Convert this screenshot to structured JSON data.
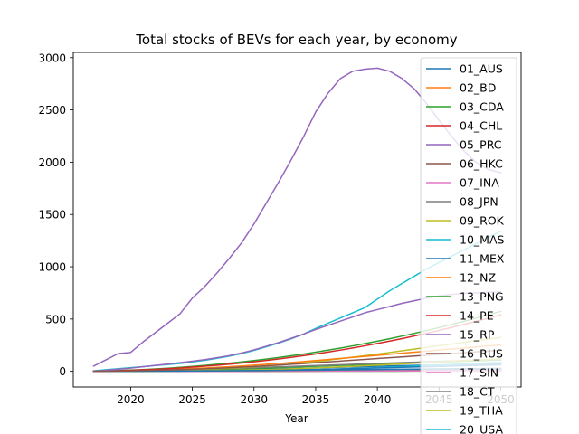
{
  "chart_data": {
    "type": "line",
    "title": "Total stocks of BEVs for each year, by economy",
    "xlabel": "Year",
    "ylabel": "",
    "xlim": [
      2015.35,
      2051.65
    ],
    "ylim": [
      -150,
      3050
    ],
    "xticks": [
      2020,
      2025,
      2030,
      2035,
      2040,
      2045,
      2050
    ],
    "yticks": [
      0,
      500,
      1000,
      1500,
      2000,
      2500,
      3000
    ],
    "grid": false,
    "legend_position": "top-right",
    "colors": [
      "#1f77b4",
      "#ff7f0e",
      "#2ca02c",
      "#d62728",
      "#9467bd",
      "#8c564b",
      "#e377c2",
      "#7f7f7f",
      "#bcbd22",
      "#17becf"
    ],
    "x": [
      2017,
      2018,
      2019,
      2020,
      2021,
      2022,
      2023,
      2024,
      2025,
      2026,
      2027,
      2028,
      2029,
      2030,
      2031,
      2032,
      2033,
      2034,
      2035,
      2036,
      2037,
      2038,
      2039,
      2040,
      2041,
      2042,
      2043,
      2044,
      2045,
      2046,
      2047,
      2048,
      2049,
      2050
    ],
    "series": [
      {
        "name": "01_AUS",
        "values": [
          0,
          0,
          1,
          1,
          2,
          3,
          4,
          5,
          7,
          9,
          11,
          13,
          15,
          18,
          21,
          24,
          27,
          30,
          33,
          36,
          39,
          42,
          45,
          48,
          51,
          54,
          57,
          59,
          61,
          63,
          65,
          67,
          69,
          70
        ]
      },
      {
        "name": "02_BD",
        "values": [
          0,
          0,
          0,
          0,
          0,
          0,
          0,
          0,
          0,
          1,
          1,
          1,
          1,
          1,
          2,
          2,
          2,
          2,
          3,
          3,
          3,
          3,
          4,
          4,
          4,
          4,
          5,
          5,
          5,
          5,
          6,
          6,
          6,
          6
        ]
      },
      {
        "name": "03_CDA",
        "values": [
          0,
          1,
          2,
          3,
          4,
          6,
          8,
          10,
          12,
          15,
          18,
          21,
          24,
          28,
          32,
          36,
          40,
          44,
          48,
          52,
          56,
          60,
          64,
          68,
          72,
          76,
          80,
          84,
          88,
          92,
          96,
          100,
          104,
          108
        ]
      },
      {
        "name": "04_CHL",
        "values": [
          0,
          0,
          0,
          0,
          0,
          0,
          1,
          1,
          1,
          1,
          2,
          2,
          2,
          3,
          3,
          3,
          4,
          4,
          5,
          5,
          6,
          6,
          7,
          7,
          8,
          8,
          9,
          9,
          10,
          10,
          11,
          11,
          12,
          12
        ]
      },
      {
        "name": "05_PRC",
        "values": [
          50,
          110,
          170,
          180,
          280,
          370,
          460,
          550,
          700,
          810,
          940,
          1080,
          1230,
          1410,
          1610,
          1810,
          2020,
          2240,
          2480,
          2660,
          2800,
          2870,
          2890,
          2900,
          2870,
          2800,
          2700,
          2560,
          2400,
          2250,
          2110,
          2000,
          1930,
          1900
        ]
      },
      {
        "name": "06_HKC",
        "values": [
          0,
          1,
          1,
          2,
          2,
          3,
          3,
          4,
          4,
          5,
          5,
          6,
          6,
          7,
          7,
          8,
          8,
          9,
          9,
          10,
          10,
          11,
          11,
          12,
          12,
          13,
          13,
          14,
          14,
          15,
          15,
          16,
          16,
          17
        ]
      },
      {
        "name": "07_INA",
        "values": [
          0,
          0,
          0,
          0,
          0,
          0,
          0,
          0,
          1,
          1,
          1,
          2,
          2,
          3,
          3,
          4,
          4,
          5,
          6,
          6,
          7,
          8,
          9,
          10,
          11,
          12,
          13,
          14,
          15,
          16,
          17,
          18,
          19,
          20
        ]
      },
      {
        "name": "08_JPN",
        "values": [
          2,
          3,
          4,
          5,
          7,
          9,
          11,
          14,
          17,
          20,
          23,
          27,
          31,
          35,
          39,
          43,
          47,
          51,
          55,
          59,
          63,
          67,
          71,
          75,
          79,
          83,
          87,
          91,
          95,
          99,
          103,
          107,
          111,
          115
        ]
      },
      {
        "name": "09_ROK",
        "values": [
          0,
          1,
          2,
          3,
          5,
          7,
          10,
          13,
          16,
          20,
          25,
          30,
          36,
          43,
          51,
          60,
          70,
          81,
          93,
          106,
          120,
          135,
          150,
          165,
          180,
          196,
          212,
          228,
          244,
          260,
          276,
          292,
          308,
          324
        ]
      },
      {
        "name": "10_MAS",
        "values": [
          0,
          0,
          0,
          0,
          0,
          1,
          1,
          1,
          2,
          2,
          3,
          4,
          5,
          6,
          8,
          10,
          12,
          14,
          17,
          20,
          23,
          27,
          31,
          35,
          40,
          45,
          50,
          55,
          60,
          65,
          70,
          75,
          80,
          85
        ]
      },
      {
        "name": "11_MEX",
        "values": [
          0,
          0,
          0,
          1,
          1,
          1,
          2,
          2,
          3,
          4,
          5,
          6,
          7,
          8,
          10,
          12,
          14,
          16,
          18,
          20,
          23,
          26,
          29,
          32,
          35,
          38,
          41,
          44,
          47,
          50,
          53,
          56,
          59,
          62
        ]
      },
      {
        "name": "12_NZ",
        "values": [
          0,
          0,
          1,
          1,
          1,
          2,
          2,
          3,
          3,
          4,
          4,
          5,
          5,
          6,
          7,
          8,
          9,
          10,
          11,
          12,
          13,
          14,
          15,
          16,
          17,
          18,
          19,
          20,
          21,
          22,
          23,
          24,
          25,
          26
        ]
      },
      {
        "name": "13_PNG",
        "values": [
          0,
          0,
          0,
          0,
          0,
          0,
          0,
          0,
          0,
          0,
          0,
          0,
          0,
          0,
          0,
          0,
          0,
          1,
          1,
          1,
          1,
          1,
          1,
          1,
          1,
          1,
          2,
          2,
          2,
          2,
          2,
          2,
          2,
          2
        ]
      },
      {
        "name": "14_PE",
        "values": [
          0,
          0,
          0,
          0,
          0,
          0,
          0,
          0,
          0,
          0,
          1,
          1,
          1,
          1,
          1,
          2,
          2,
          2,
          2,
          3,
          3,
          3,
          3,
          4,
          4,
          4,
          4,
          5,
          5,
          5,
          5,
          6,
          6,
          6
        ]
      },
      {
        "name": "15_RP",
        "values": [
          0,
          0,
          0,
          0,
          0,
          0,
          0,
          1,
          1,
          1,
          1,
          2,
          2,
          2,
          3,
          3,
          4,
          4,
          5,
          5,
          6,
          6,
          7,
          7,
          8,
          8,
          9,
          9,
          10,
          10,
          11,
          11,
          12,
          12
        ]
      },
      {
        "name": "16_RUS",
        "values": [
          0,
          0,
          0,
          0,
          0,
          1,
          1,
          1,
          2,
          2,
          3,
          3,
          4,
          5,
          6,
          7,
          8,
          9,
          10,
          11,
          12,
          13,
          14,
          15,
          16,
          17,
          18,
          19,
          20,
          21,
          22,
          23,
          24,
          25
        ]
      },
      {
        "name": "17_SIN",
        "values": [
          0,
          0,
          0,
          0,
          0,
          0,
          0,
          0,
          0,
          0,
          0,
          0,
          0,
          1,
          1,
          1,
          1,
          1,
          2,
          2,
          2,
          2,
          2,
          3,
          3,
          3,
          3,
          3,
          4,
          4,
          4,
          4,
          4,
          5
        ]
      },
      {
        "name": "18_CT",
        "values": [
          0,
          0,
          0,
          1,
          1,
          1,
          2,
          2,
          3,
          3,
          4,
          4,
          5,
          5,
          6,
          7,
          8,
          9,
          10,
          11,
          12,
          13,
          14,
          15,
          16,
          17,
          18,
          19,
          20,
          21,
          22,
          23,
          24,
          25
        ]
      },
      {
        "name": "19_THA",
        "values": [
          0,
          0,
          0,
          0,
          1,
          1,
          2,
          3,
          4,
          5,
          7,
          9,
          11,
          14,
          17,
          20,
          24,
          28,
          32,
          37,
          42,
          47,
          53,
          59,
          65,
          71,
          77,
          83,
          89,
          95,
          101,
          107,
          113,
          119
        ]
      },
      {
        "name": "20_USA",
        "values": [
          5,
          15,
          25,
          35,
          45,
          55,
          65,
          75,
          90,
          105,
          125,
          145,
          170,
          200,
          235,
          270,
          310,
          355,
          410,
          460,
          510,
          560,
          610,
          690,
          770,
          840,
          910,
          980,
          1040,
          1100,
          1160,
          1220,
          1280,
          1340
        ]
      },
      {
        "name": "",
        "values": [
          0,
          0,
          0,
          0,
          0,
          1,
          1,
          2,
          3,
          4,
          5,
          6,
          7,
          8,
          9,
          10,
          11,
          12,
          13,
          14,
          15,
          16,
          17,
          18,
          19,
          20,
          21,
          22,
          23,
          24,
          25,
          26,
          27,
          28
        ]
      },
      {
        "name": "",
        "values": [
          0,
          2,
          4,
          7,
          10,
          14,
          18,
          22,
          27,
          32,
          38,
          44,
          51,
          59,
          67,
          75,
          84,
          93,
          103,
          113,
          123,
          133,
          143,
          153,
          163,
          173,
          183,
          193,
          203,
          213,
          223,
          233,
          243,
          253
        ]
      },
      {
        "name": "",
        "values": [
          0,
          4,
          8,
          12,
          17,
          23,
          30,
          38,
          47,
          57,
          67,
          78,
          90,
          103,
          117,
          132,
          148,
          165,
          183,
          202,
          222,
          243,
          265,
          288,
          312,
          337,
          363,
          390,
          418,
          447,
          477,
          508,
          540,
          573
        ]
      },
      {
        "name": "",
        "values": [
          0,
          3,
          6,
          10,
          14,
          19,
          25,
          32,
          40,
          49,
          58,
          68,
          79,
          91,
          104,
          118,
          133,
          149,
          166,
          184,
          203,
          223,
          244,
          266,
          289,
          313,
          338,
          364,
          391,
          419,
          448,
          478,
          509,
          541
        ]
      },
      {
        "name": "",
        "values": [
          0,
          10,
          20,
          30,
          43,
          56,
          69,
          82,
          97,
          112,
          130,
          150,
          175,
          205,
          240,
          275,
          315,
          355,
          400,
          440,
          480,
          520,
          560,
          590,
          620,
          650,
          675,
          700,
          720,
          735,
          745,
          750,
          755,
          760
        ]
      },
      {
        "name": "",
        "values": [
          0,
          1,
          3,
          5,
          7,
          10,
          13,
          16,
          20,
          24,
          29,
          34,
          40,
          46,
          53,
          60,
          67,
          74,
          82,
          90,
          98,
          106,
          114,
          122,
          130,
          138,
          146,
          154,
          162,
          170,
          178,
          186,
          194,
          202
        ]
      }
    ]
  }
}
